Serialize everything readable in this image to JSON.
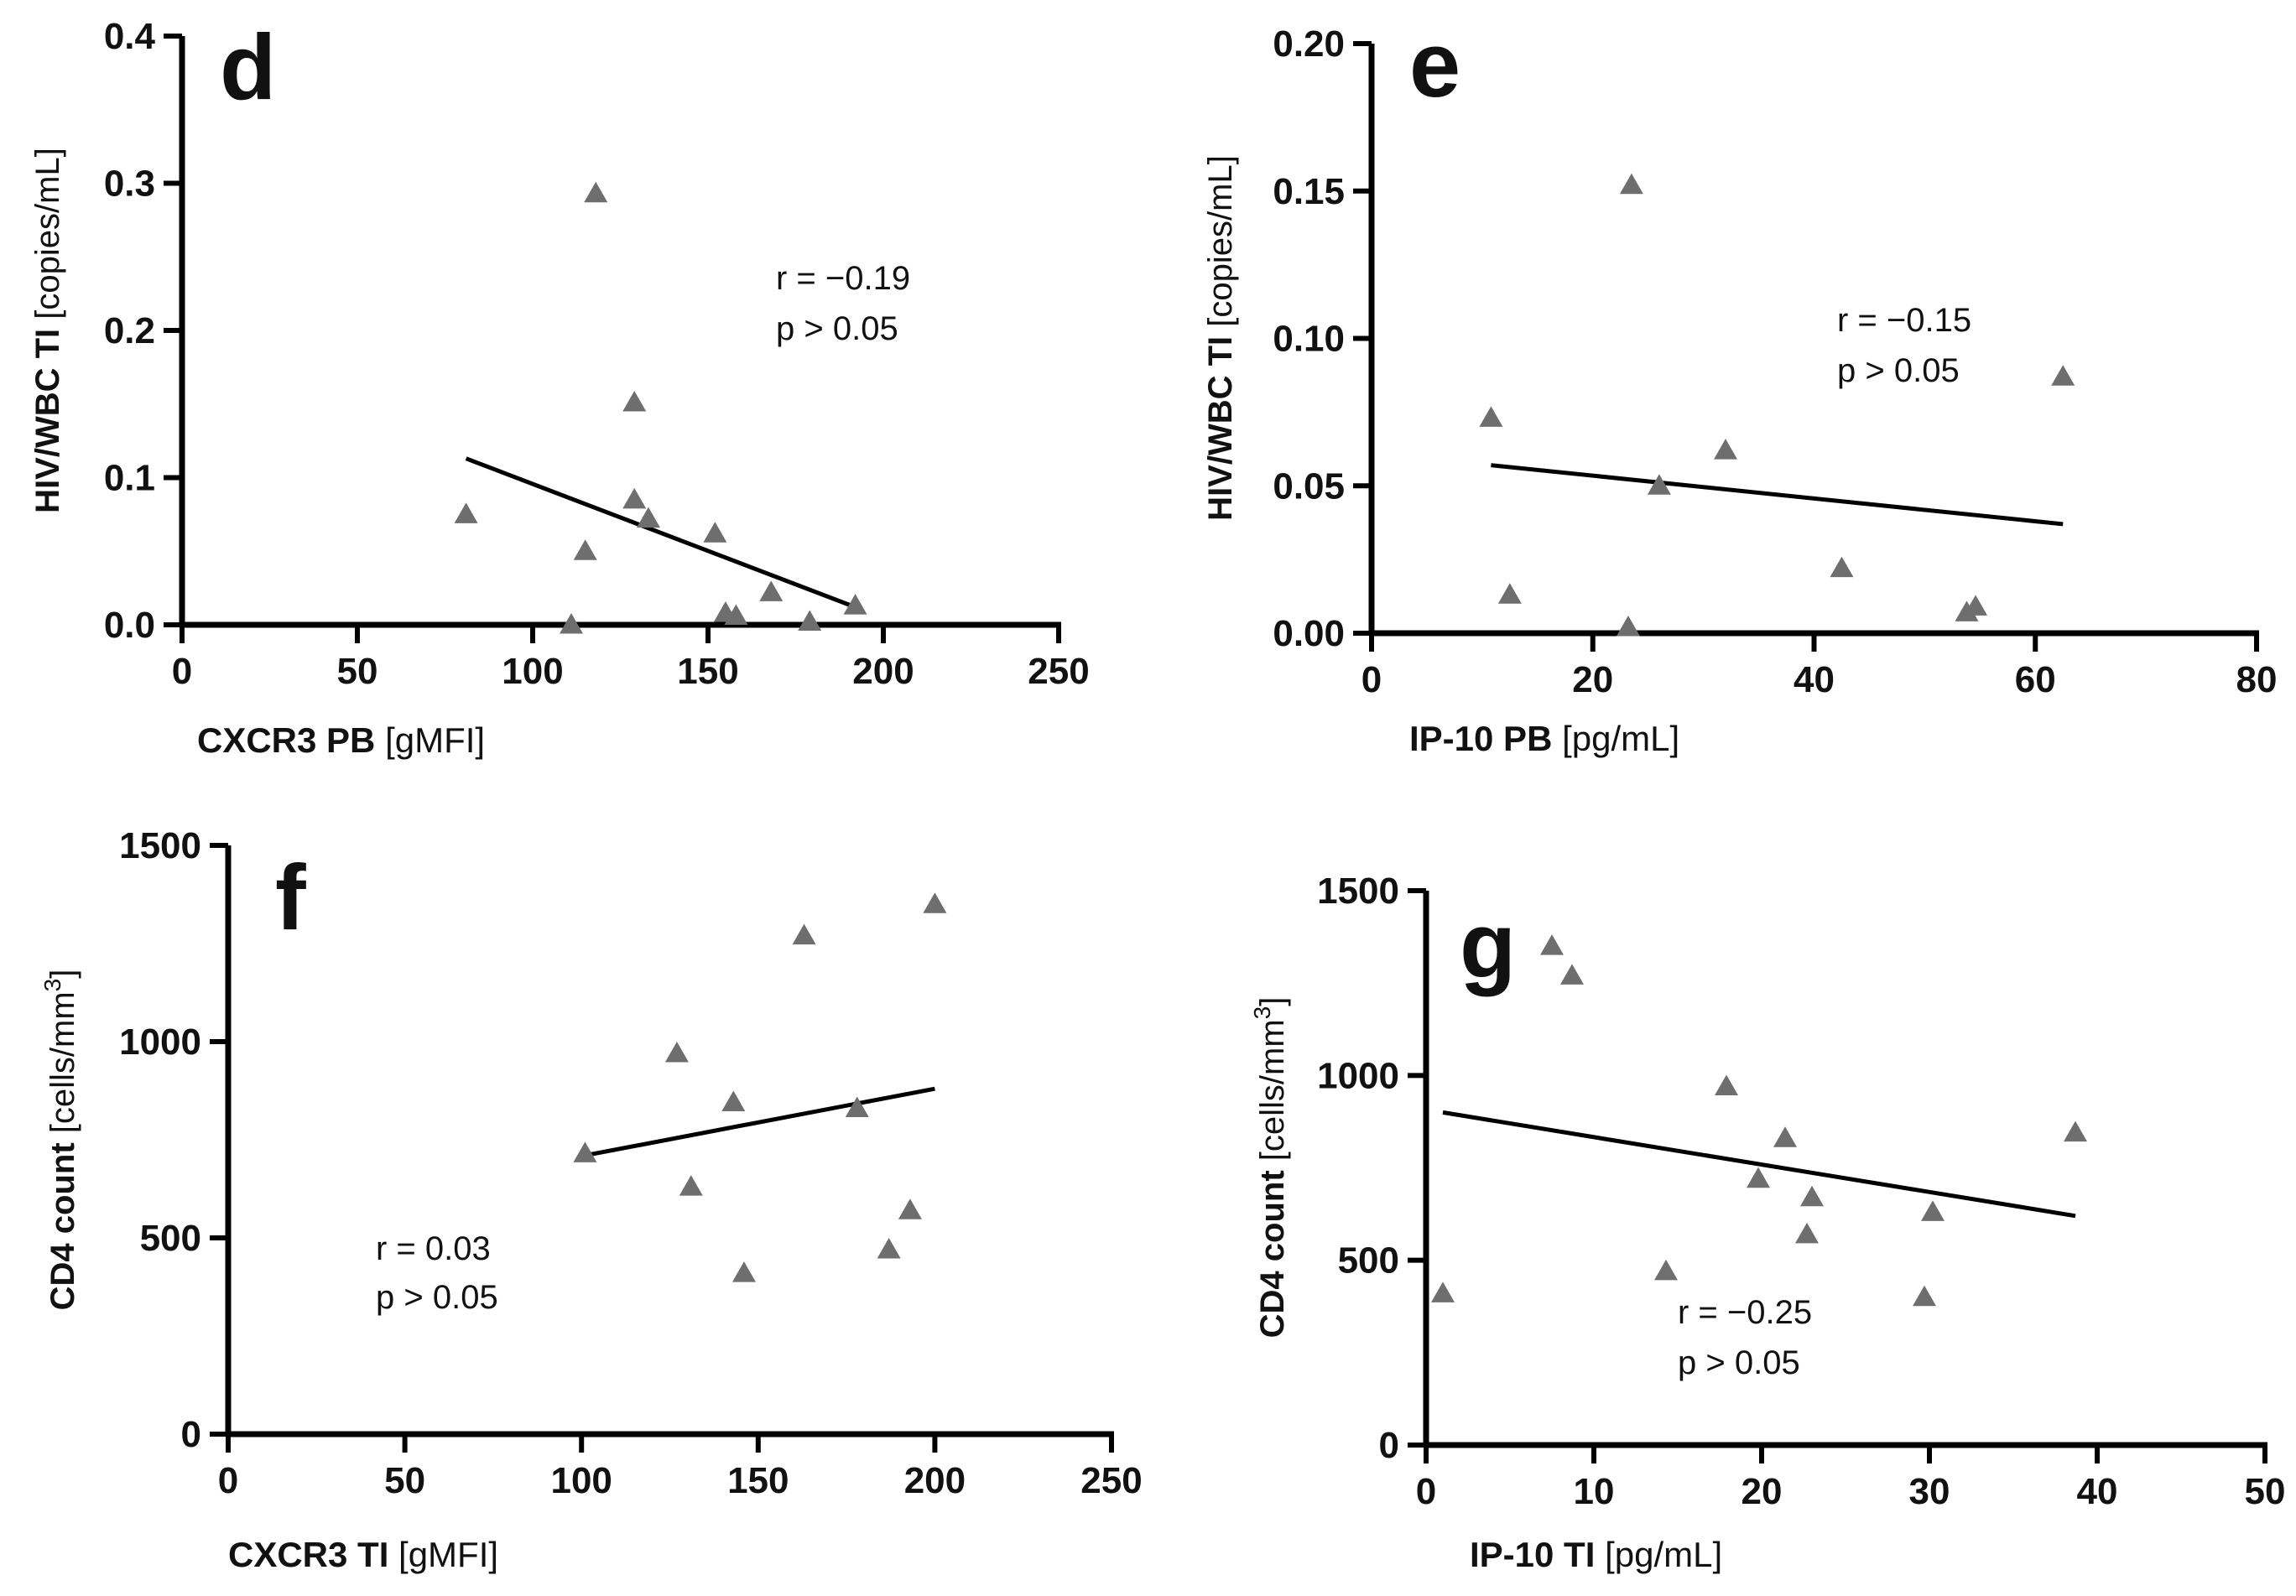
{
  "chart_data": [
    {
      "panel": "d",
      "type": "scatter",
      "xlabel_bold": "CXCR3 PB",
      "xlabel_unit": "[gMFI]",
      "ylabel_bold": "HIV/WBC TI",
      "ylabel_unit": "[copies/mL]",
      "ylabel_sup": "",
      "ylabel_after": "",
      "xlim": [
        0,
        250
      ],
      "ylim": [
        0,
        0.4
      ],
      "xticks": [
        "0",
        "50",
        "100",
        "150",
        "200",
        "250"
      ],
      "yticks": [
        "0.0",
        "0.1",
        "0.2",
        "0.3",
        "0.4"
      ],
      "points": [
        {
          "x": 81,
          "y": 0.075
        },
        {
          "x": 111,
          "y": 0.0
        },
        {
          "x": 115,
          "y": 0.05
        },
        {
          "x": 118,
          "y": 0.293
        },
        {
          "x": 129,
          "y": 0.151
        },
        {
          "x": 129,
          "y": 0.085
        },
        {
          "x": 133,
          "y": 0.072
        },
        {
          "x": 152,
          "y": 0.062
        },
        {
          "x": 155,
          "y": 0.008
        },
        {
          "x": 158,
          "y": 0.006
        },
        {
          "x": 168,
          "y": 0.022
        },
        {
          "x": 179,
          "y": 0.002
        },
        {
          "x": 192,
          "y": 0.013
        }
      ],
      "fit": {
        "x1": 81,
        "y1": 0.113,
        "x2": 192,
        "y2": 0.012
      },
      "stat_r": "r = −0.19",
      "stat_p": "p > 0.05"
    },
    {
      "panel": "e",
      "type": "scatter",
      "xlabel_bold": "IP-10 PB",
      "xlabel_unit": "[pg/mL]",
      "ylabel_bold": "HIV/WBC TI",
      "ylabel_unit": "[copies/mL]",
      "ylabel_sup": "",
      "ylabel_after": "",
      "xlim": [
        0,
        80
      ],
      "ylim": [
        0,
        0.2
      ],
      "xticks": [
        "0",
        "20",
        "40",
        "60",
        "80"
      ],
      "yticks": [
        "0.00",
        "0.05",
        "0.10",
        "0.15",
        "0.20"
      ],
      "points": [
        {
          "x": 10.8,
          "y": 0.073
        },
        {
          "x": 12.5,
          "y": 0.013
        },
        {
          "x": 23.2,
          "y": 0.002
        },
        {
          "x": 23.5,
          "y": 0.152
        },
        {
          "x": 26,
          "y": 0.05
        },
        {
          "x": 32,
          "y": 0.062
        },
        {
          "x": 42.5,
          "y": 0.022
        },
        {
          "x": 53.8,
          "y": 0.007
        },
        {
          "x": 54.6,
          "y": 0.009
        },
        {
          "x": 62.5,
          "y": 0.087
        }
      ],
      "fit": {
        "x1": 10.8,
        "y1": 0.057,
        "x2": 62.5,
        "y2": 0.037
      },
      "stat_r": "r =  −0.15",
      "stat_p": "p > 0.05"
    },
    {
      "panel": "f",
      "type": "scatter",
      "xlabel_bold": "CXCR3 TI",
      "xlabel_unit": "[gMFI]",
      "ylabel_bold": "CD4 count",
      "ylabel_unit": "[cells/mm",
      "ylabel_sup": "3",
      "ylabel_after": "]",
      "xlim": [
        0,
        250
      ],
      "ylim": [
        0,
        1500
      ],
      "xticks": [
        "0",
        "50",
        "100",
        "150",
        "200",
        "250"
      ],
      "yticks": [
        "0",
        "500",
        "1000",
        "1500"
      ],
      "points": [
        {
          "x": 101,
          "y": 715
        },
        {
          "x": 127,
          "y": 970
        },
        {
          "x": 131,
          "y": 630
        },
        {
          "x": 143,
          "y": 845
        },
        {
          "x": 146,
          "y": 410
        },
        {
          "x": 163,
          "y": 1270
        },
        {
          "x": 178,
          "y": 830
        },
        {
          "x": 187,
          "y": 470
        },
        {
          "x": 193,
          "y": 570
        },
        {
          "x": 200,
          "y": 1350
        }
      ],
      "fit": {
        "x1": 101,
        "y1": 710,
        "x2": 200,
        "y2": 880
      },
      "stat_r": "r = 0.03",
      "stat_p": "p > 0.05"
    },
    {
      "panel": "g",
      "type": "scatter",
      "xlabel_bold": "IP-10 TI",
      "xlabel_unit": "[pg/mL]",
      "ylabel_bold": "CD4 count",
      "ylabel_unit": "[cells/mm",
      "ylabel_sup": "3",
      "ylabel_after": "]",
      "xlim": [
        0,
        50
      ],
      "ylim": [
        0,
        1500
      ],
      "xticks": [
        "0",
        "10",
        "20",
        "30",
        "40",
        "50"
      ],
      "yticks": [
        "0",
        "500",
        "1000",
        "1500"
      ],
      "points": [
        {
          "x": 1,
          "y": 410
        },
        {
          "x": 7.5,
          "y": 1350
        },
        {
          "x": 8.7,
          "y": 1270
        },
        {
          "x": 14.3,
          "y": 470
        },
        {
          "x": 17.9,
          "y": 970
        },
        {
          "x": 19.8,
          "y": 720
        },
        {
          "x": 21.4,
          "y": 830
        },
        {
          "x": 22.7,
          "y": 570
        },
        {
          "x": 23,
          "y": 670
        },
        {
          "x": 29.7,
          "y": 400
        },
        {
          "x": 30.2,
          "y": 630
        },
        {
          "x": 38.7,
          "y": 845
        }
      ],
      "fit": {
        "x1": 1,
        "y1": 900,
        "x2": 38.7,
        "y2": 620
      },
      "stat_r": "r = −0.25",
      "stat_p": "p > 0.05"
    }
  ]
}
